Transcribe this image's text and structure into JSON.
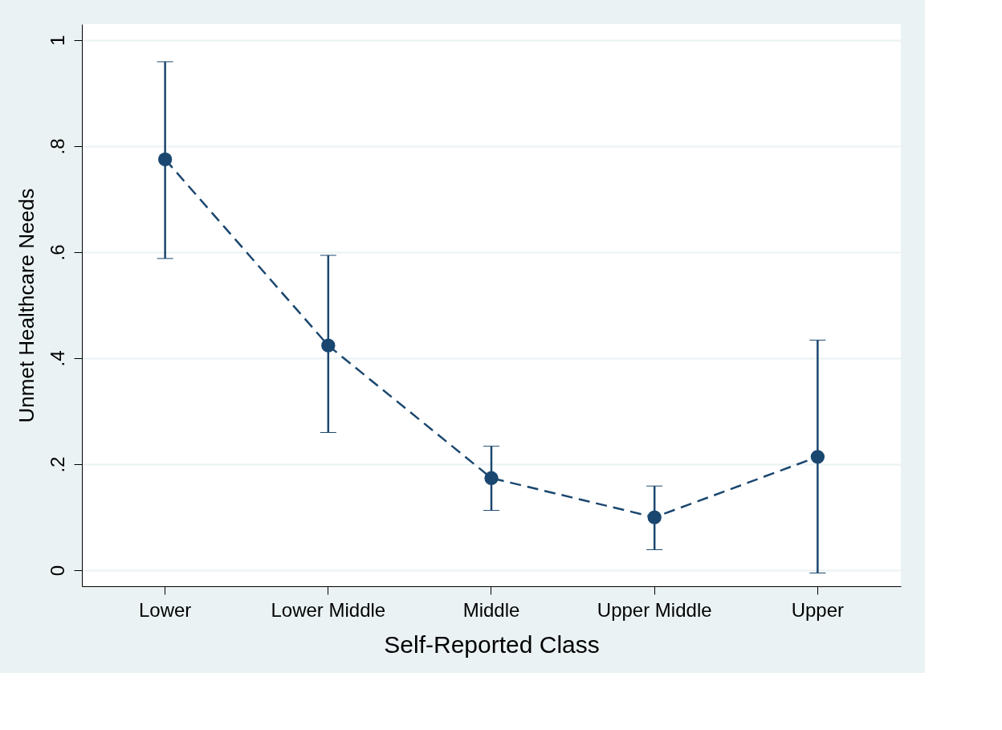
{
  "chart_data": {
    "type": "line",
    "xlabel": "Self-Reported Class",
    "ylabel": "Unmet Healthcare Needs",
    "categories": [
      "Lower",
      "Lower Middle",
      "Middle",
      "Upper Middle",
      "Upper"
    ],
    "series": [
      {
        "color": "#1a476f",
        "values": [
          0.775,
          0.424,
          0.174,
          0.1,
          0.214
        ],
        "errors": [
          [
            0.588,
            0.959
          ],
          [
            0.26,
            0.594
          ],
          [
            0.113,
            0.234
          ],
          [
            0.039,
            0.159
          ],
          [
            -0.005,
            0.434
          ]
        ]
      }
    ],
    "ylim": [
      -0.03,
      1.03
    ],
    "yticks": [
      0,
      {
        "value": 0.2,
        "label": ".2"
      },
      {
        "value": 0.4,
        "label": ".4"
      },
      {
        "value": 0.6,
        "label": ".6"
      },
      {
        "value": 0.8,
        "label": ".8"
      },
      1
    ],
    "grid": "y",
    "marker": "circle",
    "line_style": "dashed"
  }
}
